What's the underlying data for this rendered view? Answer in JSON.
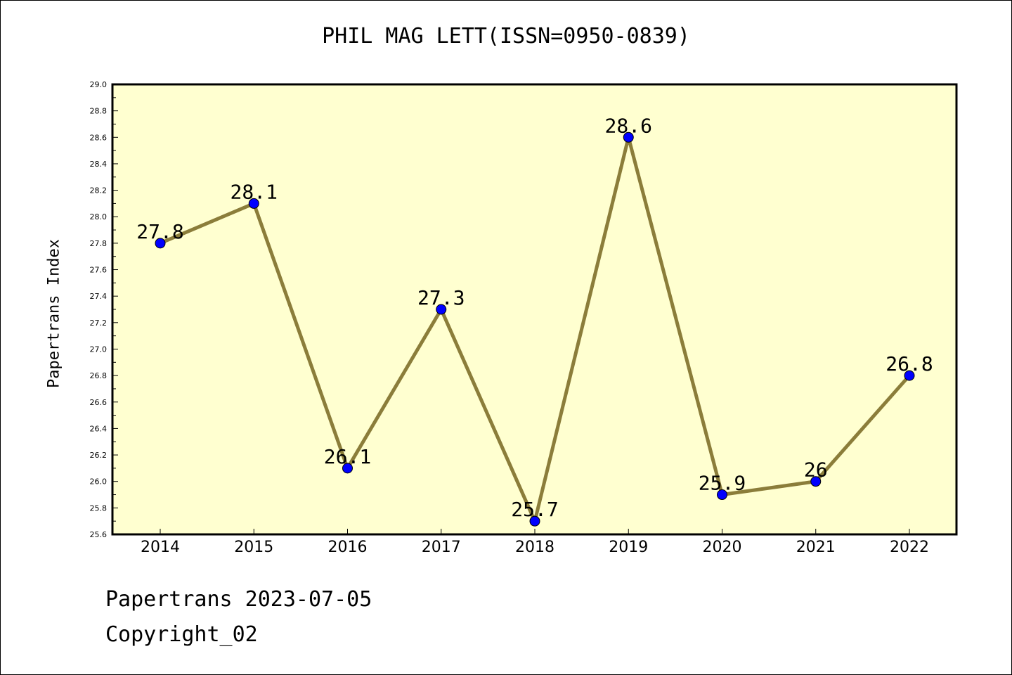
{
  "chart_data": {
    "type": "line",
    "title": "PHIL MAG LETT(ISSN=0950-0839)",
    "xlabel": "",
    "ylabel": "Papertrans Index",
    "categories": [
      "2014",
      "2015",
      "2016",
      "2017",
      "2018",
      "2019",
      "2020",
      "2021",
      "2022"
    ],
    "values": [
      27.8,
      28.1,
      26.1,
      27.3,
      25.7,
      28.6,
      25.9,
      26,
      26.8
    ],
    "data_labels": [
      "27.8",
      "28.1",
      "26.1",
      "27.3",
      "25.7",
      "28.6",
      "25.9",
      "26",
      "26.8"
    ],
    "ylim": [
      25.6,
      29.0
    ],
    "yticks": [
      "25.6",
      "25.8",
      "26.0",
      "26.2",
      "26.4",
      "26.6",
      "26.8",
      "27.0",
      "27.2",
      "27.4",
      "27.6",
      "27.8",
      "28.0",
      "28.2",
      "28.4",
      "28.6",
      "28.8",
      "29.0"
    ],
    "grid": false,
    "colors": {
      "plot_background": "#ffffd0",
      "line": "#8b7d3a",
      "marker": "#0000ff"
    }
  },
  "footer": {
    "line1": "Papertrans 2023-07-05",
    "line2": "Copyright_02"
  }
}
